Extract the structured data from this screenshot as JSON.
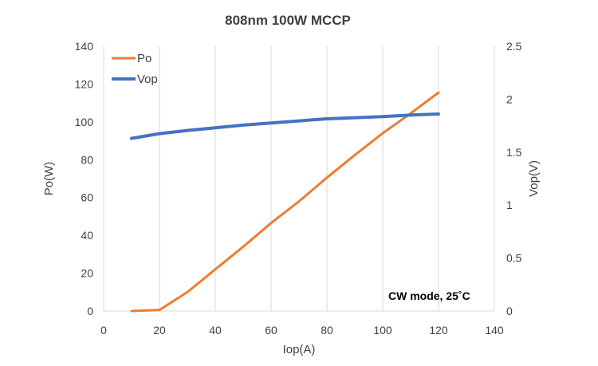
{
  "chart_data": {
    "type": "line",
    "title": "808nm 100W MCCP",
    "xlabel": "Iop(A)",
    "ylabel": "Po(W)",
    "y2label": "Vop(V)",
    "xlim": [
      0,
      140
    ],
    "ylim": [
      0,
      140
    ],
    "y2lim": [
      0,
      2.5
    ],
    "x_ticks": [
      "0",
      "20",
      "40",
      "60",
      "80",
      "100",
      "120",
      "140"
    ],
    "y_ticks": [
      "0",
      "20",
      "40",
      "60",
      "80",
      "100",
      "120",
      "140"
    ],
    "y2_ticks": [
      "0",
      "0.5",
      "1",
      "1.5",
      "2",
      "2.5"
    ],
    "grid": "vertical",
    "legend_position": "top-left",
    "annotation": "CW mode, 25˚C",
    "series": [
      {
        "name": "Po",
        "axis": "left",
        "color": "#ed7d31",
        "x": [
          10,
          20,
          30,
          40,
          50,
          60,
          70,
          80,
          90,
          100,
          110,
          120
        ],
        "values": [
          0,
          0.5,
          10,
          22,
          34,
          46.5,
          58,
          70.5,
          82.5,
          94,
          104.5,
          115.5
        ]
      },
      {
        "name": "Vop",
        "axis": "right",
        "color": "#4472c4",
        "x": [
          10,
          20,
          30,
          40,
          50,
          60,
          70,
          80,
          90,
          100,
          110,
          120
        ],
        "values": [
          1.63,
          1.675,
          1.705,
          1.73,
          1.755,
          1.775,
          1.795,
          1.815,
          1.825,
          1.835,
          1.85,
          1.86
        ]
      }
    ]
  }
}
